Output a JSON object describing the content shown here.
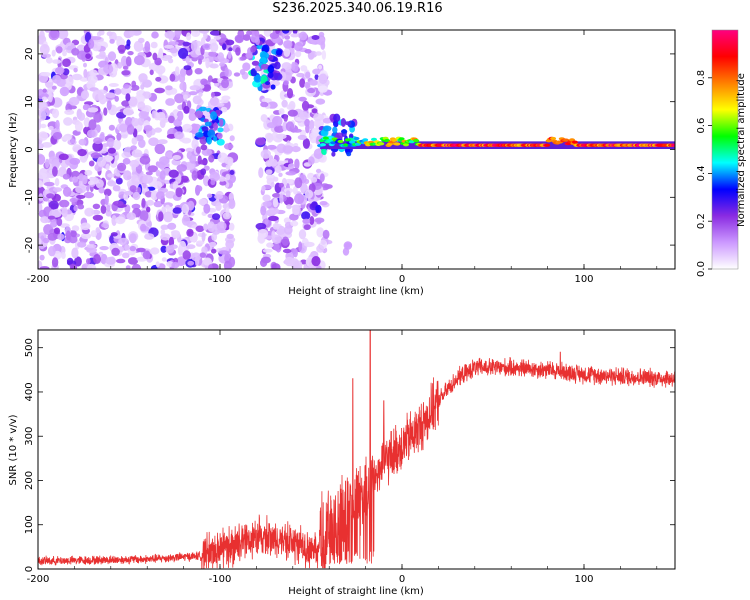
{
  "title": "S236.2025.340.06.19.R16",
  "chart_data": [
    {
      "type": "heatmap",
      "name": "spectrogram",
      "xlabel": "Height of straight line (km)",
      "ylabel": "Frequency (Hz)",
      "xlim": [
        -200,
        150
      ],
      "ylim": [
        -25,
        25
      ],
      "xticks": [
        -200,
        -100,
        0,
        100
      ],
      "xtick_labels": [
        "-200",
        "-100",
        "0",
        "100"
      ],
      "yticks": [
        -20,
        -10,
        0,
        10,
        20
      ],
      "ytick_labels": [
        "-20",
        "-10",
        "0",
        "10",
        "20"
      ],
      "carrier_band": {
        "x_start": -45,
        "x_end": 150,
        "freq_low": 0.3,
        "freq_high": 1.5
      },
      "colorbar": {
        "label": "Normalized spectral amplitude",
        "range": [
          0.0,
          1.0
        ],
        "ticks": [
          0.0,
          0.2,
          0.4,
          0.6,
          0.8
        ],
        "tick_labels": [
          "0.0",
          "0.2",
          "0.4",
          "0.6",
          "0.8"
        ],
        "colors": [
          "#ffffff",
          "#cc99ff",
          "#8a2be2",
          "#0000ff",
          "#00ffff",
          "#00ff00",
          "#ffff00",
          "#ff8000",
          "#ff0000",
          "#ff0080"
        ]
      }
    },
    {
      "type": "line",
      "name": "snr",
      "xlabel": "Height of straight line (km)",
      "ylabel": "SNR (10 * v/v)",
      "xlim": [
        -200,
        150
      ],
      "ylim": [
        0,
        540
      ],
      "xticks": [
        -200,
        -100,
        0,
        100
      ],
      "xtick_labels": [
        "-200",
        "-100",
        "0",
        "100"
      ],
      "yticks": [
        0,
        100,
        200,
        300,
        400,
        500
      ],
      "ytick_labels": [
        "0",
        "100",
        "200",
        "300",
        "400",
        "500"
      ],
      "color": "#e83030",
      "envelope": {
        "x": [
          -200,
          -140,
          -110,
          -100,
          -80,
          -60,
          -50,
          -40,
          -30,
          -20,
          -10,
          0,
          10,
          20,
          30,
          40,
          60,
          80,
          90,
          100,
          120,
          150
        ],
        "y": [
          18,
          22,
          30,
          45,
          70,
          60,
          40,
          90,
          140,
          170,
          240,
          280,
          320,
          380,
          430,
          455,
          455,
          450,
          445,
          440,
          435,
          430
        ]
      },
      "spikes": [
        {
          "x": -17.5,
          "y": 540
        },
        {
          "x": -27,
          "y": 430
        },
        {
          "x": -10,
          "y": 380
        },
        {
          "x": 87,
          "y": 490
        }
      ]
    }
  ]
}
